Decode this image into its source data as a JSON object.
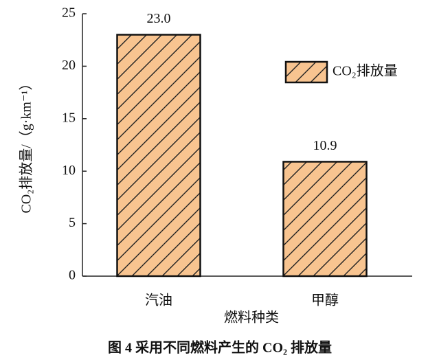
{
  "chart_data": {
    "type": "bar",
    "categories": [
      "汽油",
      "甲醇"
    ],
    "series": [
      {
        "name": "CO₂排放量",
        "color": "#f8c490",
        "values": [
          23.0,
          10.9
        ],
        "value_labels": [
          "23.0",
          "10.9"
        ]
      }
    ],
    "x_label": "燃料种类",
    "y_label": "CO₂排放量/（g·km⁻¹）",
    "ylim": [
      0,
      25
    ],
    "yticks": [
      0,
      5,
      10,
      15,
      20,
      25
    ],
    "caption": "图 4  采用不同燃料产生的 CO₂ 排放量",
    "hatch": true
  }
}
